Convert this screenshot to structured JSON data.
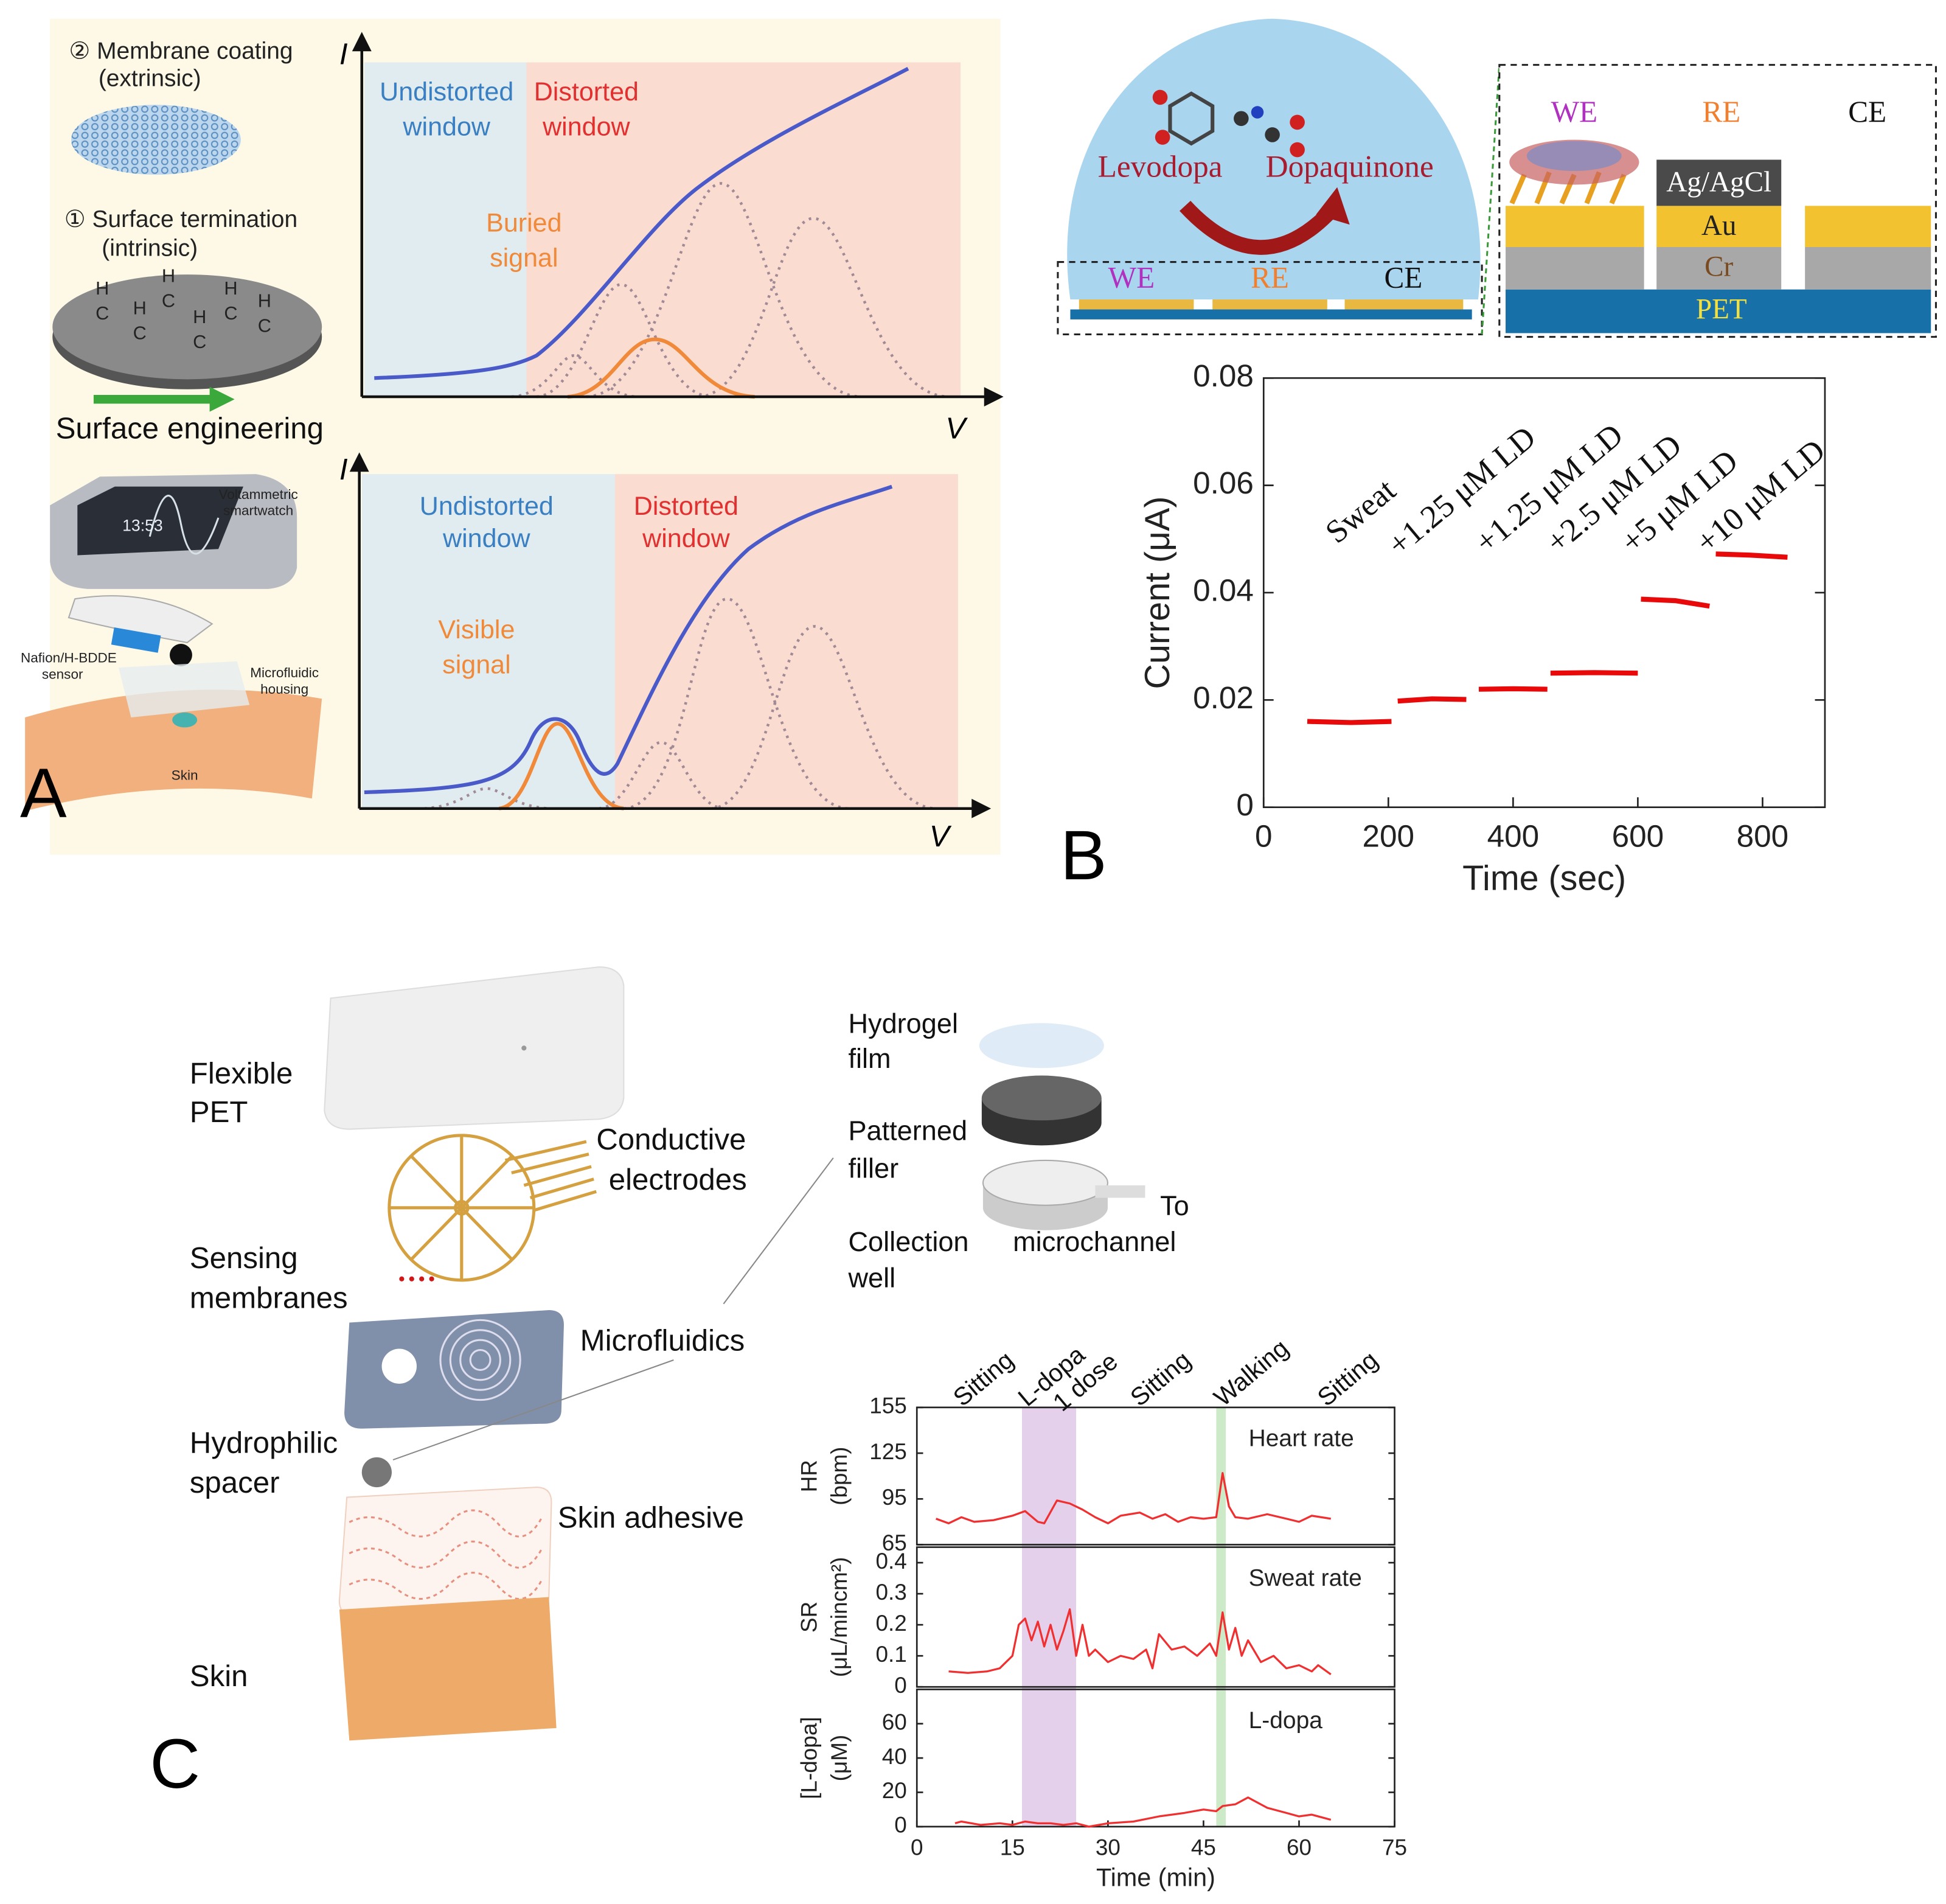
{
  "panel_a": {
    "label": "A",
    "membrane": [
      "② Membrane coating",
      "(extrinsic)"
    ],
    "termination": [
      "① Surface termination",
      "(intrinsic)"
    ],
    "surface_atoms": [
      "H",
      "C",
      "H",
      "C",
      "H",
      "C",
      "H",
      "C",
      "H",
      "C",
      "H",
      "C"
    ],
    "engineering": "Surface engineering",
    "axis_i": [
      "I",
      "I"
    ],
    "axis_v": [
      "V",
      "V"
    ],
    "top_undistorted": [
      "Undistorted",
      "window"
    ],
    "top_distorted": [
      "Distorted",
      "window"
    ],
    "buried": [
      "Buried",
      "signal"
    ],
    "bottom_undistorted": [
      "Undistorted",
      "window"
    ],
    "bottom_distorted": [
      "Distorted",
      "window"
    ],
    "visible": [
      "Visible",
      "signal"
    ],
    "watch": [
      "Voltammetric",
      "smartwatch"
    ],
    "watch_time": "13:53",
    "sensor": [
      "Nafion/H-BDDE",
      "sensor"
    ],
    "housing": [
      "Microfluidic",
      "housing"
    ],
    "skin": "Skin"
  },
  "panel_b": {
    "label": "B",
    "levodopa": "Levodopa",
    "dopaquinone": "Dopaquinone",
    "dome_electrodes": [
      "WE",
      "RE",
      "CE"
    ],
    "detail_electrodes": [
      "WE",
      "RE",
      "CE"
    ],
    "layers": {
      "agagcl": "Ag/AgCl",
      "au": "Au",
      "cr": "Cr",
      "pet": "PET"
    }
  },
  "panel_c": {
    "label": "C",
    "flexible_pet": [
      "Flexible",
      "PET"
    ],
    "conductive": [
      "Conductive",
      "electrodes"
    ],
    "sensing": [
      "Sensing",
      "membranes"
    ],
    "microfluidics": "Microfluidics",
    "hydrophilic": [
      "Hydrophilic",
      "spacer"
    ],
    "adhesive": "Skin adhesive",
    "skin": "Skin",
    "hydrogel": [
      "Hydrogel",
      "film"
    ],
    "filler": [
      "Patterned",
      "filler"
    ],
    "well": [
      "Collection",
      "well"
    ],
    "channel": [
      "To",
      "microchannel"
    ]
  },
  "chart_data": [
    {
      "type": "line",
      "color": "#e80a0a",
      "x": [
        70,
        140,
        205,
        210,
        215,
        270,
        325,
        335,
        345,
        400,
        455,
        458,
        460,
        530,
        600,
        603,
        605,
        660,
        715,
        720,
        725,
        780,
        840
      ],
      "values": [
        0.016,
        0.0158,
        0.016,
        null,
        0.0198,
        0.0202,
        0.0201,
        null,
        0.022,
        0.0221,
        0.022,
        null,
        0.025,
        0.0251,
        0.025,
        null,
        0.0388,
        0.0385,
        0.0375,
        null,
        0.0472,
        0.047,
        0.0466
      ],
      "xlim": [
        0,
        900
      ],
      "ylim": [
        0,
        0.08
      ],
      "xticks": [
        0,
        200,
        400,
        600,
        800
      ],
      "yticks": [
        0,
        0.02,
        0.04,
        0.06,
        0.08
      ],
      "xlabel": "Time (sec)",
      "ylabel": "Current (μA)",
      "annotations": [
        "Sweat",
        "+1.25 μM LD",
        "+1.25 μM LD",
        "+2.5 μM LD",
        "+5 μM LD",
        "+10 μM LD"
      ]
    },
    {
      "type": "line",
      "color": "#f03030",
      "x": [
        3,
        5,
        7,
        9,
        12,
        15,
        17,
        19,
        20,
        22,
        24,
        26,
        28,
        30,
        32,
        35,
        37,
        39,
        41,
        43,
        45,
        47,
        48,
        49,
        50,
        52,
        55,
        58,
        60,
        62,
        65
      ],
      "values": [
        82,
        79,
        83,
        80,
        81,
        84,
        87,
        80,
        79,
        94,
        92,
        88,
        83,
        79,
        84,
        86,
        82,
        85,
        80,
        83,
        82,
        83,
        112,
        90,
        83,
        82,
        85,
        82,
        80,
        84,
        82
      ],
      "xlim": [
        0,
        75
      ],
      "ylim": [
        65,
        155
      ],
      "yticks": [
        65,
        95,
        125,
        155
      ],
      "ylabel": [
        "HR",
        "(bpm)"
      ],
      "annotation": "Heart rate",
      "annotations": [
        "Sitting",
        "L-dopa",
        "1 dose",
        "Sitting",
        "Walking",
        "Sitting"
      ],
      "spans": [
        {
          "start": 16.5,
          "end": 25,
          "color": "#e5d0ec"
        },
        {
          "start": 47,
          "end": 48.5,
          "color": "#cdeac8"
        }
      ]
    },
    {
      "type": "line",
      "color": "#f03030",
      "x": [
        5,
        8,
        11,
        13,
        15,
        16,
        17,
        18,
        19,
        20,
        21,
        22,
        23,
        24,
        25,
        26,
        27,
        28,
        30,
        32,
        34,
        36,
        37,
        38,
        40,
        42,
        44,
        46,
        47,
        48,
        49,
        50,
        51,
        52,
        54,
        56,
        58,
        60,
        62,
        63,
        65
      ],
      "values": [
        0.05,
        0.045,
        0.05,
        0.06,
        0.1,
        0.2,
        0.22,
        0.15,
        0.21,
        0.13,
        0.2,
        0.12,
        0.18,
        0.25,
        0.1,
        0.2,
        0.1,
        0.12,
        0.08,
        0.1,
        0.09,
        0.12,
        0.06,
        0.17,
        0.12,
        0.13,
        0.1,
        0.14,
        0.1,
        0.24,
        0.12,
        0.19,
        0.1,
        0.15,
        0.08,
        0.1,
        0.06,
        0.07,
        0.05,
        0.07,
        0.04
      ],
      "xlim": [
        0,
        75
      ],
      "ylim": [
        0,
        0.45
      ],
      "yticks": [
        0,
        0.1,
        0.2,
        0.3,
        0.4
      ],
      "ylabel": [
        "SR",
        "(μL/mincm²)"
      ],
      "annotation": "Sweat rate"
    },
    {
      "type": "line",
      "color": "#f03030",
      "x": [
        6,
        7,
        10,
        13,
        15,
        17,
        19,
        21,
        23,
        25,
        27,
        30,
        34,
        38,
        42,
        45,
        47,
        48,
        50,
        52,
        53,
        55,
        58,
        60,
        62,
        65
      ],
      "values": [
        2,
        3,
        1,
        2,
        1,
        3,
        2,
        2,
        1,
        2,
        0,
        2,
        3,
        6,
        8,
        10,
        9,
        12,
        13,
        17,
        15,
        11,
        8,
        6,
        7,
        4
      ],
      "xlim": [
        0,
        75
      ],
      "ylim": [
        0,
        80
      ],
      "xticks": [
        0,
        15,
        30,
        45,
        60,
        75
      ],
      "yticks": [
        0,
        20,
        40,
        60
      ],
      "xlabel": "Time (min)",
      "ylabel": [
        "[L-dopa]",
        "(μM)"
      ],
      "annotation": "L-dopa"
    }
  ]
}
